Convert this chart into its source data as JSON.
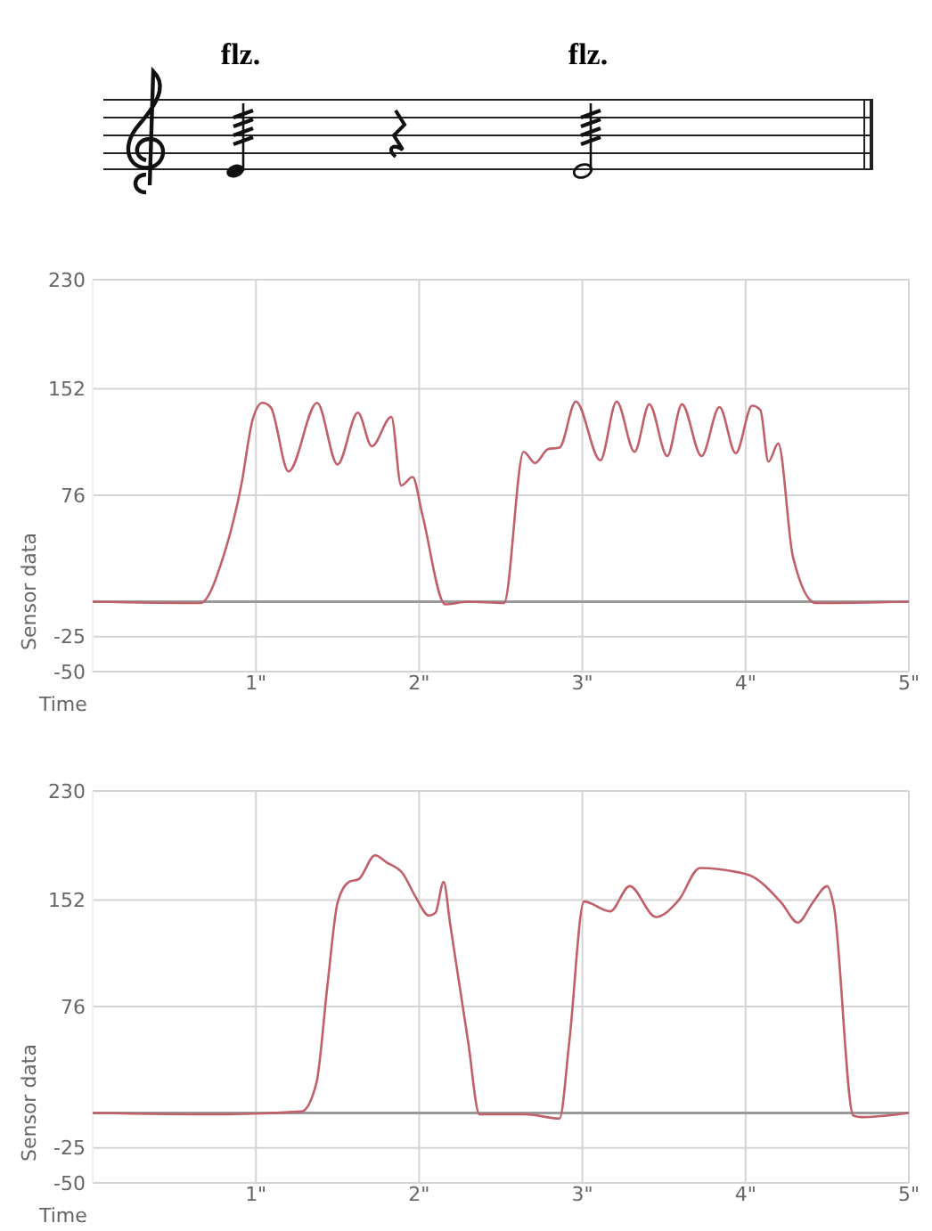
{
  "chart_data": [
    {
      "type": "line",
      "annotations": [
        "flz.",
        "flz."
      ],
      "xlabel": "Time",
      "ylabel": "Sensor data",
      "xlim": [
        0,
        5
      ],
      "xticks": [
        {
          "value": 1,
          "label": "1\""
        },
        {
          "value": 2,
          "label": "2\""
        },
        {
          "value": 3,
          "label": "3\""
        },
        {
          "value": 4,
          "label": "4\""
        },
        {
          "value": 5,
          "label": "5\""
        }
      ],
      "ylim": [
        -50,
        230
      ],
      "yticks": [
        -50,
        -25,
        76,
        152,
        230
      ],
      "grid": true,
      "ref_lines": [
        {
          "axis": "y",
          "value": 0,
          "color": "#999999"
        }
      ],
      "series": [
        {
          "color": "#c0606a",
          "x": [
            0,
            0.66,
            0.8,
            0.91,
            0.98,
            1.04,
            1.09,
            1.2,
            1.375,
            1.5,
            1.625,
            1.71,
            1.83,
            1.89,
            1.96,
            2.02,
            2.16,
            2.3,
            2.52,
            2.64,
            2.71,
            2.79,
            2.86,
            2.96,
            3.11,
            3.21,
            3.32,
            3.41,
            3.52,
            3.61,
            3.73,
            3.84,
            3.94,
            4.04,
            4.09,
            4.14,
            4.2,
            4.29,
            4.43,
            5
          ],
          "values": [
            0,
            -1,
            32,
            83,
            130,
            142,
            139,
            93,
            142,
            98,
            135,
            111,
            132,
            83,
            89,
            62,
            -2,
            0,
            -1,
            107,
            99,
            109,
            110,
            143,
            101,
            143,
            107,
            141,
            104,
            141,
            104,
            139,
            106,
            140,
            137,
            100,
            113,
            32,
            -1,
            0
          ]
        }
      ]
    },
    {
      "type": "line",
      "xlabel": "Time",
      "ylabel": "Sensor data",
      "xlim": [
        0,
        5
      ],
      "xticks": [
        {
          "value": 1,
          "label": "1\""
        },
        {
          "value": 2,
          "label": "2\""
        },
        {
          "value": 3,
          "label": "3\""
        },
        {
          "value": 4,
          "label": "4\""
        },
        {
          "value": 5,
          "label": "5\""
        }
      ],
      "ylim": [
        -50,
        230
      ],
      "yticks": [
        -50,
        -25,
        76,
        152,
        230
      ],
      "grid": true,
      "ref_lines": [
        {
          "axis": "y",
          "value": 0,
          "color": "#999999"
        }
      ],
      "series": [
        {
          "color": "#c0606a",
          "x": [
            0,
            0.77,
            1.28,
            1.37,
            1.44,
            1.5,
            1.57,
            1.63,
            1.73,
            1.8,
            1.9,
            1.98,
            2.06,
            2.1,
            2.15,
            2.19,
            2.3,
            2.37,
            2.65,
            2.86,
            2.92,
            3.01,
            3.17,
            3.29,
            3.45,
            3.59,
            3.72,
            3.95,
            4.04,
            4.22,
            4.32,
            4.41,
            4.5,
            4.54,
            4.66,
            4.71,
            5
          ],
          "values": [
            0,
            -1,
            1,
            21,
            93,
            150,
            165,
            167,
            184,
            179,
            171,
            154,
            141,
            143,
            165,
            135,
            51,
            -1,
            -1,
            -4,
            51,
            151,
            144,
            162,
            140,
            152,
            175,
            172,
            169,
            150,
            136,
            150,
            162,
            148,
            -2,
            -3,
            0
          ]
        }
      ]
    }
  ]
}
